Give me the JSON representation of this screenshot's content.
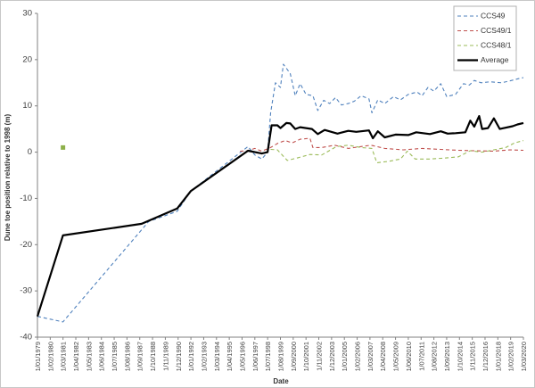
{
  "chart_data": {
    "type": "line",
    "xlabel": "Date",
    "ylabel": "Dune toe position relative to 1998 (m)",
    "ylim": [
      -40,
      30
    ],
    "yticks": [
      30,
      20,
      10,
      0,
      -10,
      -20,
      -30,
      -40
    ],
    "xlim": [
      "1979-01-01",
      "2020-03-01"
    ],
    "xtick_labels": [
      "1/01/1979",
      "1/02/1980",
      "1/03/1981",
      "1/04/1982",
      "1/05/1983",
      "1/06/1984",
      "1/07/1985",
      "1/08/1986",
      "1/09/1987",
      "1/10/1988",
      "1/11/1989",
      "1/12/1990",
      "1/01/1992",
      "1/02/1993",
      "1/03/1994",
      "1/04/1995",
      "1/05/1996",
      "1/06/1997",
      "1/07/1998",
      "1/08/1999",
      "1/09/2000",
      "1/10/2001",
      "1/11/2002",
      "1/12/2003",
      "1/01/2005",
      "1/02/2006",
      "1/03/2007",
      "1/04/2008",
      "1/05/2009",
      "1/06/2010",
      "1/07/2011",
      "1/08/2012",
      "1/09/2013",
      "1/10/2014",
      "1/11/2015",
      "1/12/2016",
      "1/01/2018",
      "1/02/2019",
      "1/03/2020"
    ],
    "legend_position": "top-right",
    "grid": false,
    "series": [
      {
        "name": "CCS49",
        "color": "#4f81bd",
        "dash": "dashed",
        "points": [
          [
            "1979-01-01",
            -35.5
          ],
          [
            "1981-03-01",
            -36.7
          ],
          [
            "1988-06-01",
            -15.0
          ],
          [
            "1990-11-01",
            -12.8
          ],
          [
            "1992-01-01",
            -8.4
          ],
          [
            "1996-11-01",
            1.2
          ],
          [
            "1997-06-01",
            -0.6
          ],
          [
            "1998-01-01",
            -1.5
          ],
          [
            "1998-07-01",
            0.0
          ],
          [
            "1998-10-01",
            8.5
          ],
          [
            "1999-03-01",
            15.0
          ],
          [
            "1999-08-01",
            14.0
          ],
          [
            "1999-11-01",
            19.0
          ],
          [
            "2000-06-01",
            17.0
          ],
          [
            "2000-11-01",
            12.2
          ],
          [
            "2001-04-01",
            14.8
          ],
          [
            "2001-10-01",
            12.5
          ],
          [
            "2002-05-01",
            12.2
          ],
          [
            "2002-10-01",
            9.0
          ],
          [
            "2003-04-01",
            11.2
          ],
          [
            "2003-10-01",
            10.5
          ],
          [
            "2004-04-01",
            11.8
          ],
          [
            "2004-10-01",
            10.2
          ],
          [
            "2005-05-01",
            10.5
          ],
          [
            "2005-11-01",
            11.0
          ],
          [
            "2006-06-01",
            12.2
          ],
          [
            "2007-02-01",
            11.5
          ],
          [
            "2007-05-01",
            8.5
          ],
          [
            "2007-11-01",
            11.3
          ],
          [
            "2008-06-01",
            10.5
          ],
          [
            "2009-03-01",
            12.0
          ],
          [
            "2009-10-01",
            11.3
          ],
          [
            "2010-06-01",
            12.5
          ],
          [
            "2011-03-01",
            13.0
          ],
          [
            "2011-08-01",
            12.2
          ],
          [
            "2012-02-01",
            14.0
          ],
          [
            "2012-08-01",
            13.2
          ],
          [
            "2013-03-01",
            14.8
          ],
          [
            "2013-09-01",
            12.0
          ],
          [
            "2014-06-01",
            12.5
          ],
          [
            "2015-02-01",
            14.8
          ],
          [
            "2015-08-01",
            14.5
          ],
          [
            "2016-01-01",
            15.5
          ],
          [
            "2016-08-01",
            15.0
          ],
          [
            "2017-05-01",
            15.2
          ],
          [
            "2018-05-01",
            15.0
          ],
          [
            "2019-03-01",
            15.5
          ],
          [
            "2019-12-01",
            16.0
          ],
          [
            "2020-03-01",
            16.1
          ]
        ]
      },
      {
        "name": "CCS49/1",
        "color": "#c0504d",
        "dash": "dashed",
        "points": [
          [
            "1996-03-01",
            0.2
          ],
          [
            "1996-11-01",
            0.3
          ],
          [
            "1997-06-01",
            0.8
          ],
          [
            "1998-01-01",
            0.2
          ],
          [
            "1998-10-01",
            1.0
          ],
          [
            "1999-06-01",
            2.0
          ],
          [
            "2000-01-01",
            2.5
          ],
          [
            "2000-08-01",
            2.0
          ],
          [
            "2001-04-01",
            2.8
          ],
          [
            "2002-02-01",
            3.0
          ],
          [
            "2002-05-01",
            1.0
          ],
          [
            "2003-02-01",
            1.0
          ],
          [
            "2004-03-01",
            1.5
          ],
          [
            "2005-05-01",
            0.8
          ],
          [
            "2006-06-01",
            1.2
          ],
          [
            "2007-04-01",
            1.5
          ],
          [
            "2008-06-01",
            0.8
          ],
          [
            "2010-01-01",
            0.5
          ],
          [
            "2011-08-01",
            0.8
          ],
          [
            "2013-03-01",
            0.6
          ],
          [
            "2014-09-01",
            0.4
          ],
          [
            "2016-01-01",
            0.3
          ],
          [
            "2017-09-01",
            0.2
          ],
          [
            "2019-01-01",
            0.5
          ],
          [
            "2020-03-01",
            0.4
          ]
        ]
      },
      {
        "name": "CCS48/1",
        "color": "#9bbb59",
        "dash": "dashed",
        "points": [
          [
            "1998-10-01",
            0.6
          ],
          [
            "1999-05-01",
            0.5
          ],
          [
            "2000-03-01",
            -1.8
          ],
          [
            "2001-02-01",
            -1.2
          ],
          [
            "2002-02-01",
            -0.5
          ],
          [
            "2003-02-01",
            -0.6
          ],
          [
            "2004-05-01",
            1.2
          ],
          [
            "2005-05-01",
            1.5
          ],
          [
            "2006-06-01",
            1.0
          ],
          [
            "2007-05-01",
            0.8
          ],
          [
            "2007-10-01",
            -2.3
          ],
          [
            "2008-10-01",
            -2.0
          ],
          [
            "2009-10-01",
            -1.5
          ],
          [
            "2010-05-01",
            0.2
          ],
          [
            "2011-01-01",
            -1.5
          ],
          [
            "2012-03-01",
            -1.5
          ],
          [
            "2013-06-01",
            -1.3
          ],
          [
            "2014-09-01",
            -1.0
          ],
          [
            "2015-09-01",
            0.3
          ],
          [
            "2016-09-01",
            0.0
          ],
          [
            "2017-09-01",
            0.5
          ],
          [
            "2018-09-01",
            1.0
          ],
          [
            "2019-06-01",
            2.0
          ],
          [
            "2020-03-01",
            2.5
          ]
        ]
      },
      {
        "name": "Average",
        "color": "#000000",
        "dash": "solid",
        "points": [
          [
            "1979-01-01",
            -35.5
          ],
          [
            "1981-03-01",
            -18.0
          ],
          [
            "1987-11-01",
            -15.5
          ],
          [
            "1990-11-01",
            -12.2
          ],
          [
            "1992-01-01",
            -8.4
          ],
          [
            "1996-11-01",
            0.3
          ],
          [
            "1998-01-01",
            -0.3
          ],
          [
            "1998-07-01",
            0.0
          ],
          [
            "1998-11-01",
            5.8
          ],
          [
            "1999-05-01",
            5.8
          ],
          [
            "1999-08-01",
            5.2
          ],
          [
            "2000-02-01",
            6.3
          ],
          [
            "2000-06-01",
            6.2
          ],
          [
            "2000-11-01",
            5.0
          ],
          [
            "2001-04-01",
            5.4
          ],
          [
            "2002-04-01",
            5.0
          ],
          [
            "2002-10-01",
            3.9
          ],
          [
            "2003-05-01",
            4.8
          ],
          [
            "2004-06-01",
            4.0
          ],
          [
            "2005-05-01",
            4.6
          ],
          [
            "2006-01-01",
            4.4
          ],
          [
            "2007-02-01",
            4.7
          ],
          [
            "2007-06-01",
            3.0
          ],
          [
            "2007-11-01",
            4.5
          ],
          [
            "2008-06-01",
            3.2
          ],
          [
            "2009-05-01",
            3.8
          ],
          [
            "2010-06-01",
            3.7
          ],
          [
            "2011-02-01",
            4.3
          ],
          [
            "2012-04-01",
            3.9
          ],
          [
            "2013-03-01",
            4.5
          ],
          [
            "2013-10-01",
            4.0
          ],
          [
            "2014-06-01",
            4.1
          ],
          [
            "2015-04-01",
            4.3
          ],
          [
            "2015-09-01",
            6.8
          ],
          [
            "2016-01-01",
            5.5
          ],
          [
            "2016-06-01",
            7.8
          ],
          [
            "2016-09-01",
            5.0
          ],
          [
            "2017-03-01",
            5.2
          ],
          [
            "2017-09-01",
            7.3
          ],
          [
            "2018-03-01",
            5.0
          ],
          [
            "2019-04-01",
            5.6
          ],
          [
            "2019-09-01",
            6.0
          ],
          [
            "2020-03-01",
            6.3
          ]
        ]
      }
    ],
    "isolated_points": [
      {
        "date": "1981-03-01",
        "y": 1.0,
        "color": "#8db04a"
      }
    ]
  }
}
